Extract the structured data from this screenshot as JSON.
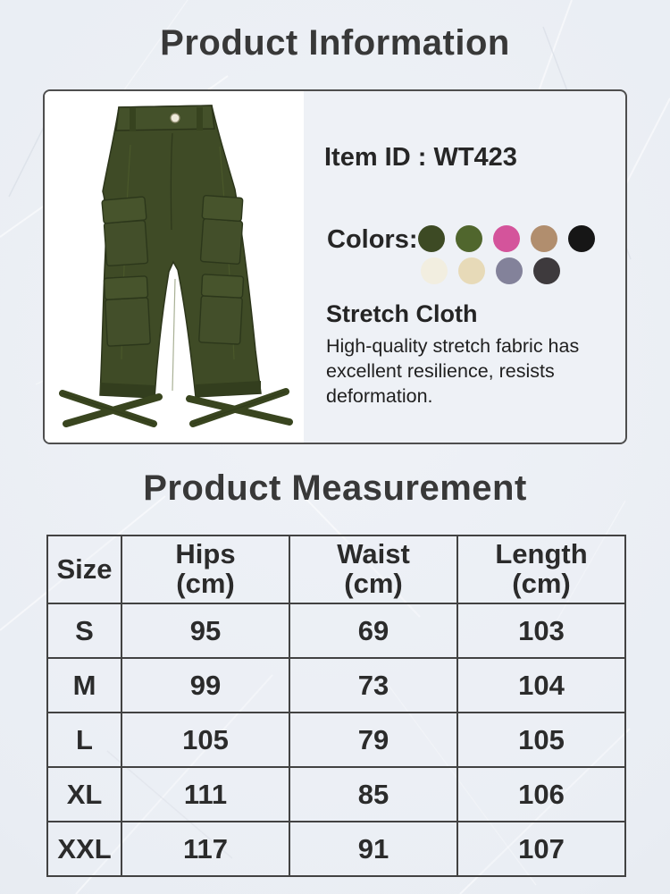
{
  "header": {
    "title": "Product Information"
  },
  "product": {
    "item_id": "Item ID : WT423",
    "colors_label": "Colors:",
    "fabric": {
      "title": "Stretch Cloth",
      "description": "High-quality stretch fabric has excellent resilience, resists deformation."
    },
    "image": {
      "name": "olive green cargo pants",
      "main_color": "#3f4b26"
    },
    "color_swatches": {
      "row1": [
        "#3d4a24",
        "#50662d",
        "#d4549b",
        "#b18e6e",
        "#161616"
      ],
      "row2": [
        "#f2eee0",
        "#e7dab8",
        "#83829a",
        "#3e3a3d"
      ]
    }
  },
  "measurement": {
    "title": "Product Measurement",
    "columns": [
      {
        "label": "Size",
        "unit": ""
      },
      {
        "label": "Hips",
        "unit": "(cm)"
      },
      {
        "label": "Waist",
        "unit": "(cm)"
      },
      {
        "label": "Length",
        "unit": "(cm)"
      }
    ],
    "rows": [
      {
        "size": "S",
        "hips": "95",
        "waist": "69",
        "length": "103"
      },
      {
        "size": "M",
        "hips": "99",
        "waist": "73",
        "length": "104"
      },
      {
        "size": "L",
        "hips": "105",
        "waist": "79",
        "length": "105"
      },
      {
        "size": "XL",
        "hips": "111",
        "waist": "85",
        "length": "106"
      },
      {
        "size": "XXL",
        "hips": "117",
        "waist": "91",
        "length": "107"
      }
    ]
  }
}
